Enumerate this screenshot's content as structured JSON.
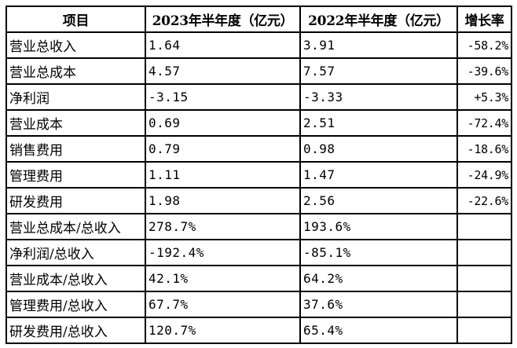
{
  "table": {
    "headers": [
      "项目",
      "2023年半年度（亿元）",
      "2022年半年度（亿元）",
      "增长率"
    ],
    "rows": [
      {
        "item": "营业总收入",
        "h2023": "1.64",
        "h2022": "3.91",
        "growth": "-58.2%"
      },
      {
        "item": "营业总成本",
        "h2023": "4.57",
        "h2022": "7.57",
        "growth": "-39.6%"
      },
      {
        "item": "净利润",
        "h2023": "-3.15",
        "h2022": "-3.33",
        "growth": "+5.3%"
      },
      {
        "item": "营业成本",
        "h2023": "0.69",
        "h2022": "2.51",
        "growth": "-72.4%"
      },
      {
        "item": "销售费用",
        "h2023": "0.79",
        "h2022": "0.98",
        "growth": "-18.6%"
      },
      {
        "item": "管理费用",
        "h2023": "1.11",
        "h2022": "1.47",
        "growth": "-24.9%"
      },
      {
        "item": "研发费用",
        "h2023": "1.98",
        "h2022": "2.56",
        "growth": "-22.6%"
      },
      {
        "item": "营业总成本/总收入",
        "h2023": "278.7%",
        "h2022": "193.6%",
        "growth": ""
      },
      {
        "item": "净利润/总收入",
        "h2023": "-192.4%",
        "h2022": "-85.1%",
        "growth": ""
      },
      {
        "item": "营业成本/总收入",
        "h2023": "42.1%",
        "h2022": "64.2%",
        "growth": ""
      },
      {
        "item": "管理费用/总收入",
        "h2023": "67.7%",
        "h2022": "37.6%",
        "growth": ""
      },
      {
        "item": "研发费用/总收入",
        "h2023": "120.7%",
        "h2022": "65.4%",
        "growth": ""
      }
    ]
  }
}
